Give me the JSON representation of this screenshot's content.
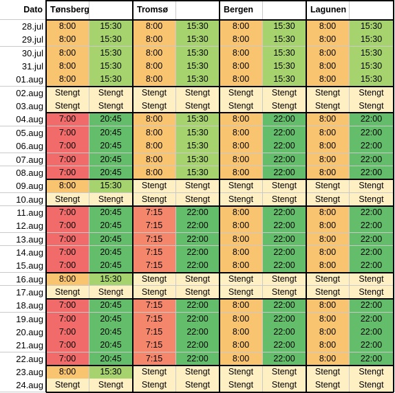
{
  "header": {
    "dato": "Dato",
    "locations": [
      "Tønsberg",
      "Tromsø",
      "Bergen",
      "Lagunen"
    ]
  },
  "rows": [
    {
      "date": "28.jul",
      "cells": [
        [
          "8:00",
          "o"
        ],
        [
          "15:30",
          "lg"
        ],
        [
          "8:00",
          "o"
        ],
        [
          "15:30",
          "lg"
        ],
        [
          "8:00",
          "o"
        ],
        [
          "15:30",
          "lg"
        ],
        [
          "8:00",
          "o"
        ],
        [
          "15:30",
          "lg"
        ]
      ]
    },
    {
      "date": "29.jul",
      "cells": [
        [
          "8:00",
          "o"
        ],
        [
          "15:30",
          "lg"
        ],
        [
          "8:00",
          "o"
        ],
        [
          "15:30",
          "lg"
        ],
        [
          "8:00",
          "o"
        ],
        [
          "15:30",
          "lg"
        ],
        [
          "8:00",
          "o"
        ],
        [
          "15:30",
          "lg"
        ]
      ]
    },
    {
      "date": "30.jul",
      "cells": [
        [
          "8:00",
          "o"
        ],
        [
          "15:30",
          "lg"
        ],
        [
          "8:00",
          "o"
        ],
        [
          "15:30",
          "lg"
        ],
        [
          "8:00",
          "o"
        ],
        [
          "15:30",
          "lg"
        ],
        [
          "8:00",
          "o"
        ],
        [
          "15:30",
          "lg"
        ]
      ]
    },
    {
      "date": "31.jul",
      "cells": [
        [
          "8:00",
          "o"
        ],
        [
          "15:30",
          "lg"
        ],
        [
          "8:00",
          "o"
        ],
        [
          "15:30",
          "lg"
        ],
        [
          "8:00",
          "o"
        ],
        [
          "15:30",
          "lg"
        ],
        [
          "8:00",
          "o"
        ],
        [
          "15:30",
          "lg"
        ]
      ]
    },
    {
      "date": "01.aug",
      "cells": [
        [
          "8:00",
          "o"
        ],
        [
          "15:30",
          "lg"
        ],
        [
          "8:00",
          "o"
        ],
        [
          "15:30",
          "lg"
        ],
        [
          "8:00",
          "o"
        ],
        [
          "15:30",
          "lg"
        ],
        [
          "8:00",
          "o"
        ],
        [
          "15:30",
          "lg"
        ]
      ]
    },
    {
      "date": "02.aug",
      "cells": [
        [
          "Stengt",
          "c"
        ],
        [
          "Stengt",
          "c"
        ],
        [
          "Stengt",
          "c"
        ],
        [
          "Stengt",
          "c"
        ],
        [
          "Stengt",
          "c"
        ],
        [
          "Stengt",
          "c"
        ],
        [
          "Stengt",
          "c"
        ],
        [
          "Stengt",
          "c"
        ]
      ]
    },
    {
      "date": "03.aug",
      "cells": [
        [
          "Stengt",
          "c"
        ],
        [
          "Stengt",
          "c"
        ],
        [
          "Stengt",
          "c"
        ],
        [
          "Stengt",
          "c"
        ],
        [
          "Stengt",
          "c"
        ],
        [
          "Stengt",
          "c"
        ],
        [
          "Stengt",
          "c"
        ],
        [
          "Stengt",
          "c"
        ]
      ]
    },
    {
      "date": "04.aug",
      "cells": [
        [
          "7:00",
          "r"
        ],
        [
          "20:45",
          "dg"
        ],
        [
          "8:00",
          "o"
        ],
        [
          "15:30",
          "lg"
        ],
        [
          "8:00",
          "o"
        ],
        [
          "22:00",
          "dg"
        ],
        [
          "8:00",
          "o"
        ],
        [
          "22:00",
          "dg"
        ]
      ]
    },
    {
      "date": "05.aug",
      "cells": [
        [
          "7:00",
          "r"
        ],
        [
          "20:45",
          "dg"
        ],
        [
          "8:00",
          "o"
        ],
        [
          "15:30",
          "lg"
        ],
        [
          "8:00",
          "o"
        ],
        [
          "22:00",
          "dg"
        ],
        [
          "8:00",
          "o"
        ],
        [
          "22:00",
          "dg"
        ]
      ]
    },
    {
      "date": "06.aug",
      "cells": [
        [
          "7:00",
          "r"
        ],
        [
          "20:45",
          "dg"
        ],
        [
          "8:00",
          "o"
        ],
        [
          "15:30",
          "lg"
        ],
        [
          "8:00",
          "o"
        ],
        [
          "22:00",
          "dg"
        ],
        [
          "8:00",
          "o"
        ],
        [
          "22:00",
          "dg"
        ]
      ]
    },
    {
      "date": "07.aug",
      "cells": [
        [
          "7:00",
          "r"
        ],
        [
          "20:45",
          "dg"
        ],
        [
          "8:00",
          "o"
        ],
        [
          "15:30",
          "lg"
        ],
        [
          "8:00",
          "o"
        ],
        [
          "22:00",
          "dg"
        ],
        [
          "8:00",
          "o"
        ],
        [
          "22:00",
          "dg"
        ]
      ]
    },
    {
      "date": "08.aug",
      "cells": [
        [
          "7:00",
          "r"
        ],
        [
          "20:45",
          "dg"
        ],
        [
          "8:00",
          "o"
        ],
        [
          "15:30",
          "lg"
        ],
        [
          "8:00",
          "o"
        ],
        [
          "22:00",
          "dg"
        ],
        [
          "8:00",
          "o"
        ],
        [
          "22:00",
          "dg"
        ]
      ]
    },
    {
      "date": "09.aug",
      "cells": [
        [
          "8:00",
          "o"
        ],
        [
          "15:30",
          "lg"
        ],
        [
          "Stengt",
          "c"
        ],
        [
          "Stengt",
          "c"
        ],
        [
          "Stengt",
          "c"
        ],
        [
          "Stengt",
          "c"
        ],
        [
          "Stengt",
          "c"
        ],
        [
          "Stengt",
          "c"
        ]
      ]
    },
    {
      "date": "10.aug",
      "cells": [
        [
          "Stengt",
          "c"
        ],
        [
          "Stengt",
          "c"
        ],
        [
          "Stengt",
          "c"
        ],
        [
          "Stengt",
          "c"
        ],
        [
          "Stengt",
          "c"
        ],
        [
          "Stengt",
          "c"
        ],
        [
          "Stengt",
          "c"
        ],
        [
          "Stengt",
          "c"
        ]
      ]
    },
    {
      "date": "11.aug",
      "cells": [
        [
          "7:00",
          "r"
        ],
        [
          "20:45",
          "dg"
        ],
        [
          "7:15",
          "s"
        ],
        [
          "22:00",
          "dg"
        ],
        [
          "8:00",
          "o"
        ],
        [
          "22:00",
          "dg"
        ],
        [
          "8:00",
          "o"
        ],
        [
          "22:00",
          "dg"
        ]
      ]
    },
    {
      "date": "12.aug",
      "cells": [
        [
          "7:00",
          "r"
        ],
        [
          "20:45",
          "dg"
        ],
        [
          "7:15",
          "s"
        ],
        [
          "22:00",
          "dg"
        ],
        [
          "8:00",
          "o"
        ],
        [
          "22:00",
          "dg"
        ],
        [
          "8:00",
          "o"
        ],
        [
          "22:00",
          "dg"
        ]
      ]
    },
    {
      "date": "13.aug",
      "cells": [
        [
          "7:00",
          "r"
        ],
        [
          "20:45",
          "dg"
        ],
        [
          "7:15",
          "s"
        ],
        [
          "22:00",
          "dg"
        ],
        [
          "8:00",
          "o"
        ],
        [
          "22:00",
          "dg"
        ],
        [
          "8:00",
          "o"
        ],
        [
          "22:00",
          "dg"
        ]
      ]
    },
    {
      "date": "14.aug",
      "cells": [
        [
          "7:00",
          "r"
        ],
        [
          "20:45",
          "dg"
        ],
        [
          "7:15",
          "s"
        ],
        [
          "22:00",
          "dg"
        ],
        [
          "8:00",
          "o"
        ],
        [
          "22:00",
          "dg"
        ],
        [
          "8:00",
          "o"
        ],
        [
          "22:00",
          "dg"
        ]
      ]
    },
    {
      "date": "15.aug",
      "cells": [
        [
          "7:00",
          "r"
        ],
        [
          "20:45",
          "dg"
        ],
        [
          "7:15",
          "s"
        ],
        [
          "22:00",
          "dg"
        ],
        [
          "8:00",
          "o"
        ],
        [
          "22:00",
          "dg"
        ],
        [
          "8:00",
          "o"
        ],
        [
          "22:00",
          "dg"
        ]
      ]
    },
    {
      "date": "16.aug",
      "cells": [
        [
          "8:00",
          "o"
        ],
        [
          "15:30",
          "lg"
        ],
        [
          "Stengt",
          "c"
        ],
        [
          "Stengt",
          "c"
        ],
        [
          "Stengt",
          "c"
        ],
        [
          "Stengt",
          "c"
        ],
        [
          "Stengt",
          "c"
        ],
        [
          "Stengt",
          "c"
        ]
      ]
    },
    {
      "date": "17.aug",
      "cells": [
        [
          "Stengt",
          "c"
        ],
        [
          "Stengt",
          "c"
        ],
        [
          "Stengt",
          "c"
        ],
        [
          "Stengt",
          "c"
        ],
        [
          "Stengt",
          "c"
        ],
        [
          "Stengt",
          "c"
        ],
        [
          "Stengt",
          "c"
        ],
        [
          "Stengt",
          "c"
        ]
      ]
    },
    {
      "date": "18.aug",
      "cells": [
        [
          "7:00",
          "r"
        ],
        [
          "20:45",
          "dg"
        ],
        [
          "7:15",
          "s"
        ],
        [
          "22:00",
          "dg"
        ],
        [
          "8:00",
          "o"
        ],
        [
          "22:00",
          "dg"
        ],
        [
          "8:00",
          "o"
        ],
        [
          "22:00",
          "dg"
        ]
      ]
    },
    {
      "date": "19.aug",
      "cells": [
        [
          "7:00",
          "r"
        ],
        [
          "20:45",
          "dg"
        ],
        [
          "7:15",
          "s"
        ],
        [
          "22:00",
          "dg"
        ],
        [
          "8:00",
          "o"
        ],
        [
          "22:00",
          "dg"
        ],
        [
          "8:00",
          "o"
        ],
        [
          "22:00",
          "dg"
        ]
      ]
    },
    {
      "date": "20.aug",
      "cells": [
        [
          "7:00",
          "r"
        ],
        [
          "20:45",
          "dg"
        ],
        [
          "7:15",
          "s"
        ],
        [
          "22:00",
          "dg"
        ],
        [
          "8:00",
          "o"
        ],
        [
          "22:00",
          "dg"
        ],
        [
          "8:00",
          "o"
        ],
        [
          "22:00",
          "dg"
        ]
      ]
    },
    {
      "date": "21.aug",
      "cells": [
        [
          "7:00",
          "r"
        ],
        [
          "20:45",
          "dg"
        ],
        [
          "7:15",
          "s"
        ],
        [
          "22:00",
          "dg"
        ],
        [
          "8:00",
          "o"
        ],
        [
          "22:00",
          "dg"
        ],
        [
          "8:00",
          "o"
        ],
        [
          "22:00",
          "dg"
        ]
      ]
    },
    {
      "date": "22.aug",
      "cells": [
        [
          "7:00",
          "r"
        ],
        [
          "20:45",
          "dg"
        ],
        [
          "7:15",
          "s"
        ],
        [
          "22:00",
          "dg"
        ],
        [
          "8:00",
          "o"
        ],
        [
          "22:00",
          "dg"
        ],
        [
          "8:00",
          "o"
        ],
        [
          "22:00",
          "dg"
        ]
      ]
    },
    {
      "date": "23.aug",
      "cells": [
        [
          "8:00",
          "o"
        ],
        [
          "15:30",
          "lg"
        ],
        [
          "Stengt",
          "c"
        ],
        [
          "Stengt",
          "c"
        ],
        [
          "Stengt",
          "c"
        ],
        [
          "Stengt",
          "c"
        ],
        [
          "Stengt",
          "c"
        ],
        [
          "Stengt",
          "c"
        ]
      ]
    },
    {
      "date": "24.aug",
      "cells": [
        [
          "Stengt",
          "c"
        ],
        [
          "Stengt",
          "c"
        ],
        [
          "Stengt",
          "c"
        ],
        [
          "Stengt",
          "c"
        ],
        [
          "Stengt",
          "c"
        ],
        [
          "Stengt",
          "c"
        ],
        [
          "Stengt",
          "c"
        ],
        [
          "Stengt",
          "c"
        ]
      ]
    }
  ],
  "fill_colors": {
    "o": "#f8c470",
    "lg": "#a6d36e",
    "dg": "#63bd6a",
    "r": "#f26b6b",
    "s": "#f4866b",
    "c": "#fff0c4"
  }
}
